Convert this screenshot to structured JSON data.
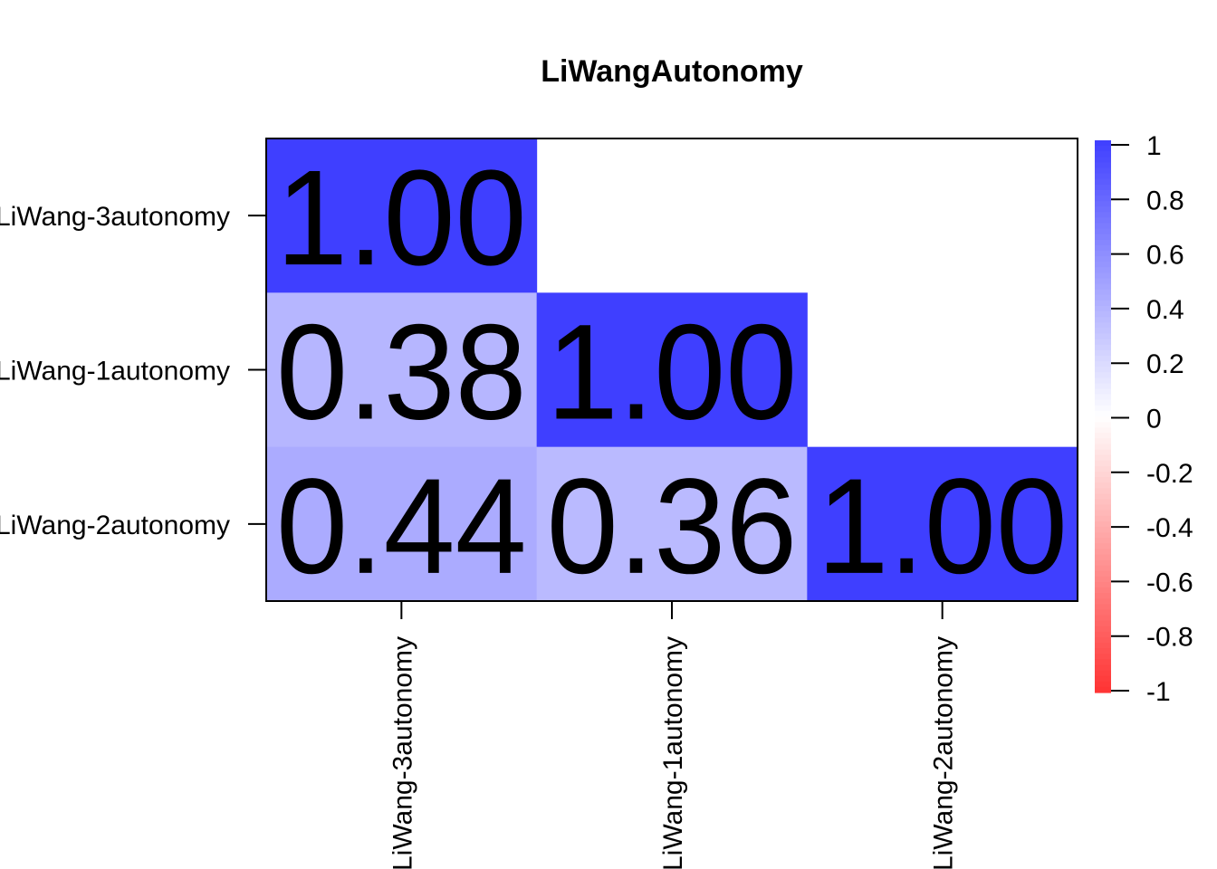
{
  "chart_data": {
    "type": "heatmap",
    "title": "LiWangAutonomy",
    "rows": [
      "LiWang-3autonomy",
      "LiWang-1autonomy",
      "LiWang-2autonomy"
    ],
    "columns": [
      "LiWang-3autonomy",
      "LiWang-1autonomy",
      "LiWang-2autonomy"
    ],
    "values": [
      [
        1.0,
        null,
        null
      ],
      [
        0.38,
        1.0,
        null
      ],
      [
        0.44,
        0.36,
        1.0
      ]
    ],
    "value_labels": [
      [
        "1.00",
        "",
        ""
      ],
      [
        "0.38",
        "1.00",
        ""
      ],
      [
        "0.44",
        "0.36",
        "1.00"
      ]
    ],
    "colorbar": {
      "range": [
        -1,
        1
      ],
      "ticks": [
        "1",
        "0.8",
        "0.6",
        "0.4",
        "0.2",
        "0",
        "-0.2",
        "-0.4",
        "-0.6",
        "-0.8",
        "-1"
      ],
      "low_color": "#ff3333",
      "mid_color": "#ffffff",
      "high_color": "#3f3fff"
    }
  }
}
